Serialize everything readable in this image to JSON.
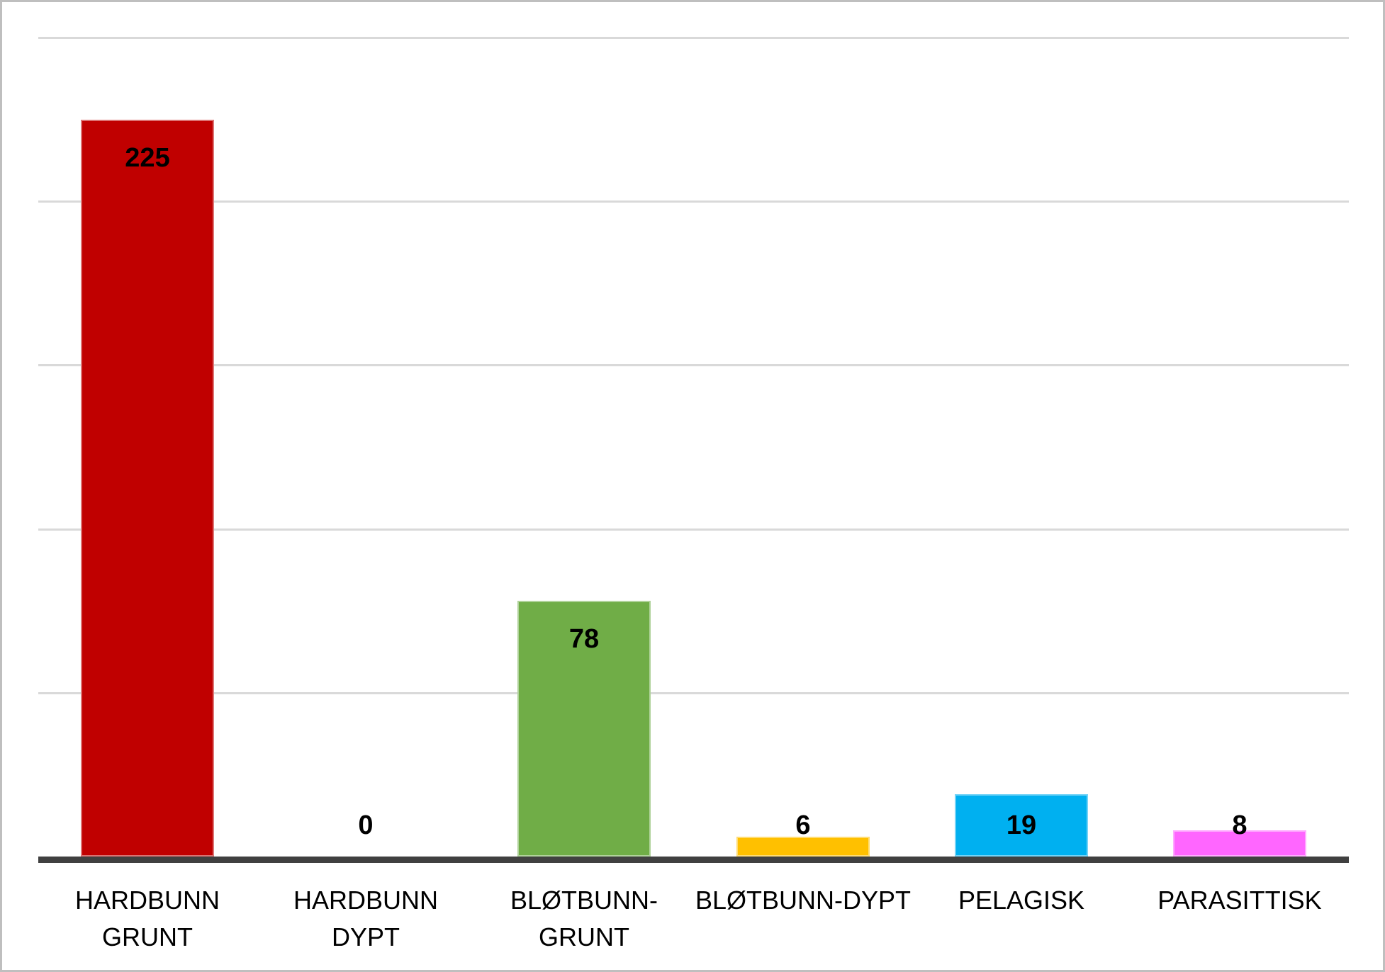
{
  "chart_data": {
    "type": "bar",
    "title": "",
    "xlabel": "",
    "ylabel": "",
    "categories": [
      "HARDBUNN GRUNT",
      "HARDBUNN DYPT",
      "BLØTBUNN-GRUNT",
      "BLØTBUNN-DYPT",
      "PELAGISK",
      "PARASITTISK"
    ],
    "tick_lines": [
      [
        "HARDBUNN",
        "GRUNT"
      ],
      [
        "HARDBUNN DYPT"
      ],
      [
        "BLØTBUNN-",
        "GRUNT"
      ],
      [
        "BLØTBUNN-DYPT"
      ],
      [
        "PELAGISK"
      ],
      [
        "PARASITTISK"
      ]
    ],
    "values": [
      225,
      0,
      78,
      6,
      19,
      8
    ],
    "data_labels": [
      "225",
      "0",
      "78",
      "6",
      "19",
      "8"
    ],
    "bar_colors": [
      "#C00000",
      null,
      "#70AD47",
      "#FFC000",
      "#00B0F0",
      "#FF66FF"
    ],
    "ylim": [
      0,
      250
    ],
    "gridline_step": 50,
    "grid": true,
    "legend": false
  },
  "style": {
    "background": "#FFFFFF",
    "frame_border_color": "#BFBFBF",
    "axis_color": "#404040",
    "gridline_color": "#D9D9D9",
    "label_color": "#000000"
  }
}
